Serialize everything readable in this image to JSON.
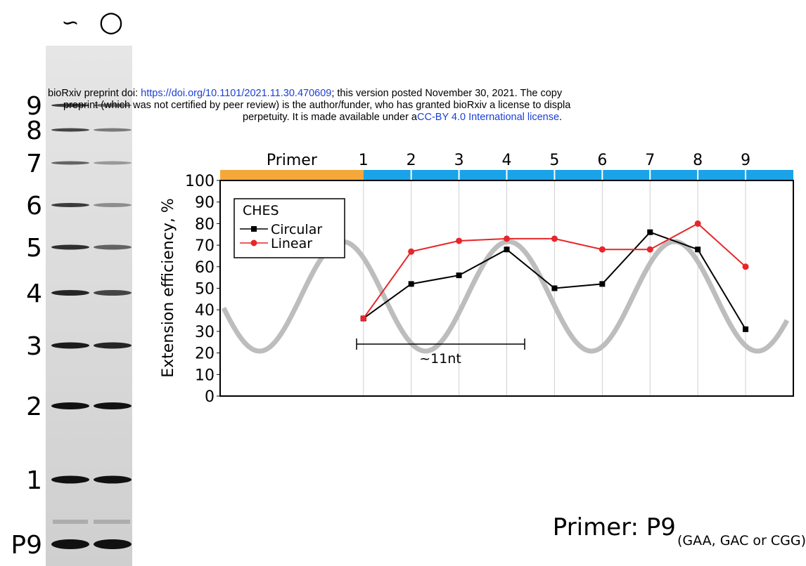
{
  "header": {
    "line1": [
      "bioRxiv preprint doi: ",
      "https://doi.org/10.1101/2021.11.30.470609",
      "; this version posted November 30, 2021. The copy"
    ],
    "line2": "preprint (which was not certified by peer review) is the author/funder, who has granted bioRxiv a license to displa",
    "line3": [
      "perpetuity. It is made available under a",
      "CC-BY 4.0 International license",
      "."
    ]
  },
  "gel": {
    "lane_labels": [
      "∽",
      "○"
    ],
    "band_labels": [
      "9",
      "8",
      "7",
      "6",
      "5",
      "4",
      "3",
      "2",
      "1",
      "P9"
    ]
  },
  "caption": {
    "text": "Primer: P9",
    "subscript": "(GAA, GAC or CGG)"
  },
  "chart_data": {
    "type": "line",
    "y_label": "Extension efficiency, %",
    "x_header_label": "Primer",
    "legend_title": "CHES",
    "annotation": "~11nt",
    "x": [
      1,
      2,
      3,
      4,
      5,
      6,
      7,
      8,
      9
    ],
    "series": [
      {
        "name": "Circular",
        "color": "#000000",
        "marker": "square",
        "values": [
          36,
          52,
          56,
          68,
          50,
          52,
          76,
          68,
          31
        ]
      },
      {
        "name": "Linear",
        "color": "#e8262a",
        "marker": "circle",
        "values": [
          36,
          67,
          72,
          73,
          73,
          68,
          68,
          80,
          60
        ]
      }
    ],
    "xlim": [
      -2,
      10
    ],
    "xticks": [
      1,
      2,
      3,
      4,
      5,
      6,
      7,
      8,
      9
    ],
    "ylim": [
      0,
      100
    ],
    "yticks": [
      0,
      10,
      20,
      30,
      40,
      50,
      60,
      70,
      80,
      90,
      100
    ],
    "grid": "x",
    "legend": "upper left"
  }
}
